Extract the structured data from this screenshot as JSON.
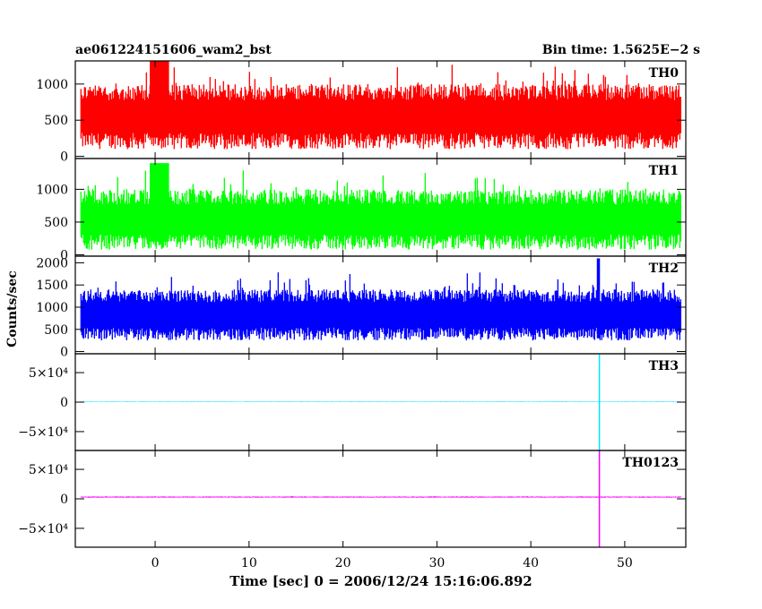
{
  "header": {
    "title": "ae061224151606_wam2_bst",
    "bin_time": "Bin time: 1.5625E−2 s"
  },
  "chart_data": {
    "type": "line",
    "xlabel": "Time [sec] 0 = 2006/12/24 15:16:06.892",
    "ylabel": "Counts/sec",
    "xlim": [
      -8.5,
      56.5
    ],
    "x_range_data": [
      -7.9,
      56.0
    ],
    "xticks": [
      0,
      10,
      20,
      30,
      40,
      50
    ],
    "xtick_labels": [
      "0",
      "10",
      "20",
      "30",
      "40",
      "50"
    ],
    "panels": [
      {
        "name": "TH0",
        "color": "#ff0000",
        "ylim": [
          -30,
          1320
        ],
        "yticks": [
          0,
          500,
          1000
        ],
        "ytick_labels": [
          "0",
          "500",
          "1000"
        ],
        "band": {
          "low": 100,
          "high": 1000
        },
        "features": [
          {
            "x_start": -0.5,
            "x_end": 1.5,
            "low": 260,
            "high": 1320
          }
        ]
      },
      {
        "name": "TH1",
        "color": "#00ff00",
        "ylim": [
          -20,
          1470
        ],
        "yticks": [
          0,
          500,
          1000
        ],
        "ytick_labels": [
          "0",
          "500",
          "1000"
        ],
        "band": {
          "low": 80,
          "high": 1000
        },
        "features": [
          {
            "x_start": -0.5,
            "x_end": 1.5,
            "low": 200,
            "high": 1400
          }
        ]
      },
      {
        "name": "TH2",
        "color": "#0000ff",
        "ylim": [
          -50,
          2150
        ],
        "yticks": [
          0,
          500,
          1000,
          1500,
          2000
        ],
        "ytick_labels": [
          "0",
          "500",
          "1000",
          "1500",
          "2000"
        ],
        "band": {
          "low": 250,
          "high": 1400
        },
        "features": [
          {
            "x_start": 47.1,
            "x_end": 47.3,
            "low": 300,
            "high": 2100
          }
        ]
      },
      {
        "name": "TH3",
        "color": "#00e5ff",
        "ylim": [
          -82000,
          82000
        ],
        "yticks": [
          50000,
          0,
          -50000
        ],
        "ytick_labels": [
          "5×10⁴",
          "0",
          "−5×10⁴"
        ],
        "band": {
          "low": 0,
          "high": 1000
        },
        "features": [
          {
            "x_start": 47.3,
            "x_end": 47.3,
            "low": -82000,
            "high": 82000
          }
        ]
      },
      {
        "name": "TH0123",
        "color": "#ff00ff",
        "ylim": [
          -82000,
          82000
        ],
        "yticks": [
          50000,
          0,
          -50000
        ],
        "ytick_labels": [
          "5×10⁴",
          "0",
          "−5×10⁴"
        ],
        "band": {
          "low": 2000,
          "high": 4000
        },
        "features": [
          {
            "x_start": 47.3,
            "x_end": 47.3,
            "low": -82000,
            "high": 82000
          }
        ]
      }
    ]
  }
}
